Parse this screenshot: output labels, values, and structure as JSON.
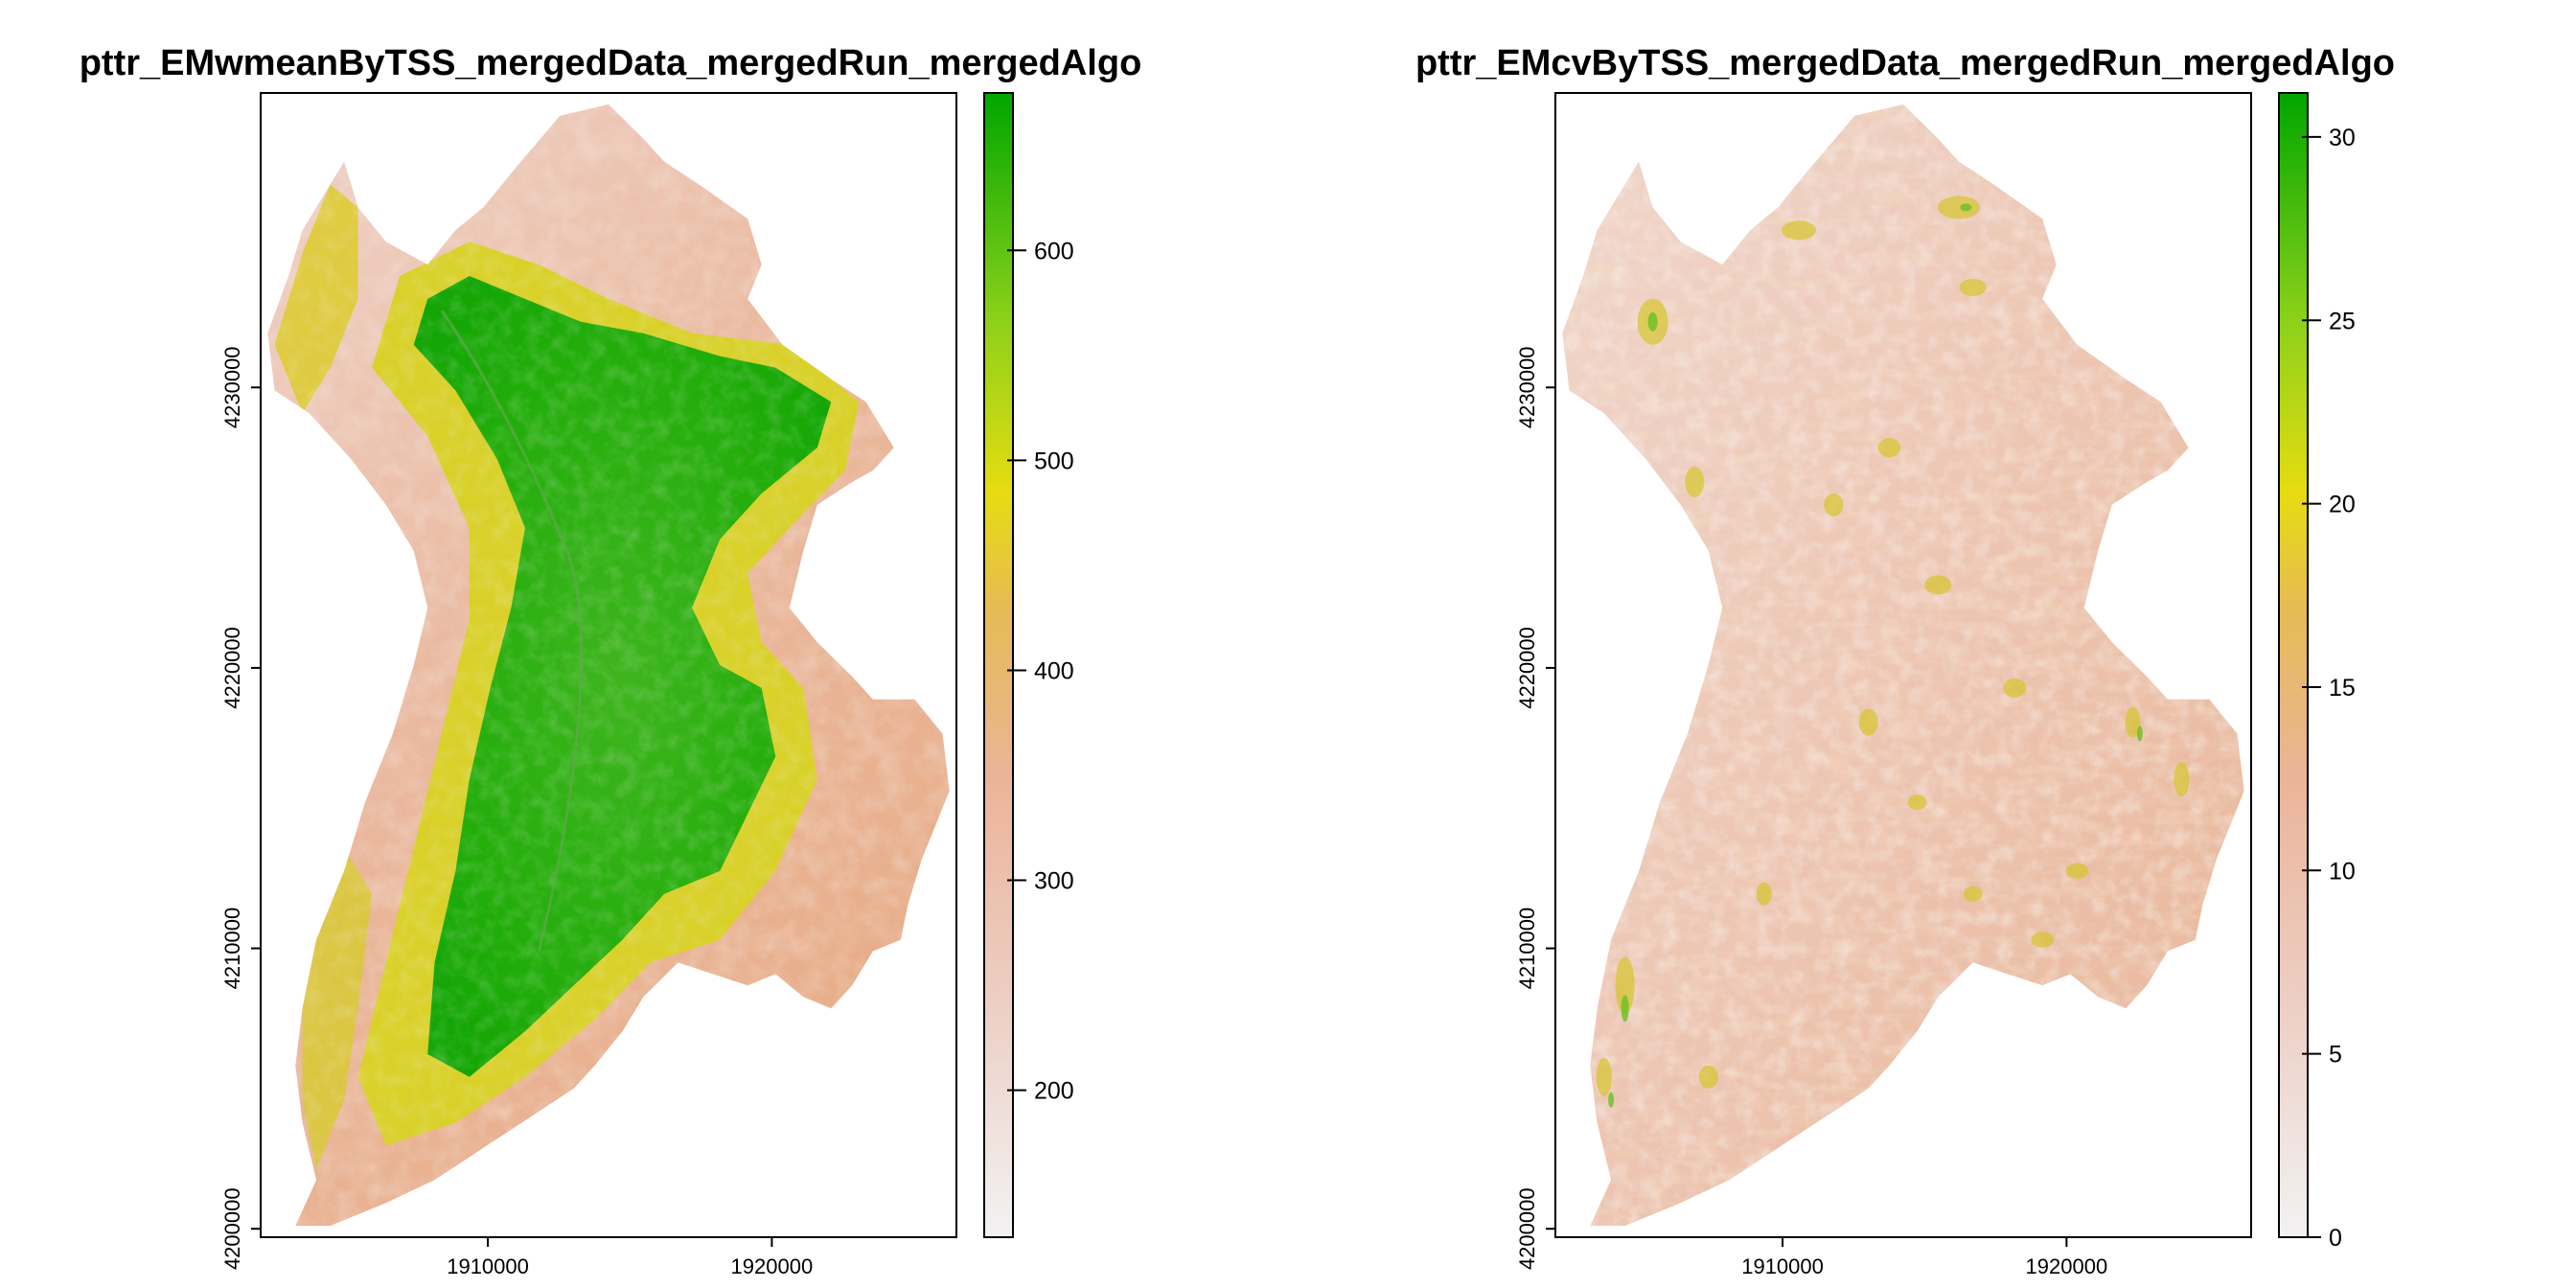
{
  "chart_data": [
    {
      "type": "heatmap",
      "title": "pttr_EMwmeanByTSS_mergedData_mergedRun_mergedAlgo",
      "xlabel": "",
      "ylabel": "",
      "xlim": [
        1902000,
        1926500
      ],
      "ylim": [
        4199700,
        4240500
      ],
      "x_ticks": [
        1910000,
        1920000
      ],
      "x_tick_labels": [
        "1910000",
        "1920000"
      ],
      "y_ticks": [
        4200000,
        4210000,
        4220000,
        4230000
      ],
      "y_tick_labels": [
        "4200000",
        "4210000",
        "4220000",
        "4230000"
      ],
      "legend": {
        "placement": "right",
        "range": [
          130,
          675
        ],
        "ticks": [
          200,
          300,
          400,
          500,
          600
        ],
        "tick_labels": [
          "200",
          "300",
          "400",
          "500",
          "600"
        ]
      },
      "colors": {
        "low": "#f2f2f2",
        "mid_low": "#ebb499",
        "mid": "#e6cd2e",
        "mid_high": "#8dd11a",
        "high": "#00a600"
      },
      "grid": false
    },
    {
      "type": "heatmap",
      "title": "pttr_EMcvByTSS_mergedData_mergedRun_mergedAlgo",
      "xlabel": "",
      "ylabel": "",
      "xlim": [
        1902000,
        1926500
      ],
      "ylim": [
        4199700,
        4240500
      ],
      "x_ticks": [
        1910000,
        1920000
      ],
      "x_tick_labels": [
        "1910000",
        "1920000"
      ],
      "y_ticks": [
        4200000,
        4210000,
        4220000,
        4230000
      ],
      "y_tick_labels": [
        "4200000",
        "4210000",
        "4220000",
        "4230000"
      ],
      "legend": {
        "placement": "right",
        "range": [
          0,
          31.2
        ],
        "ticks": [
          0,
          5,
          10,
          15,
          20,
          25,
          30
        ],
        "tick_labels": [
          "0",
          "5",
          "10",
          "15",
          "20",
          "25",
          "30"
        ]
      },
      "colors": {
        "low": "#f2f2f2",
        "mid_low": "#ebb499",
        "mid": "#e6cd2e",
        "mid_high": "#8dd11a",
        "high": "#00a600"
      },
      "grid": false
    }
  ]
}
